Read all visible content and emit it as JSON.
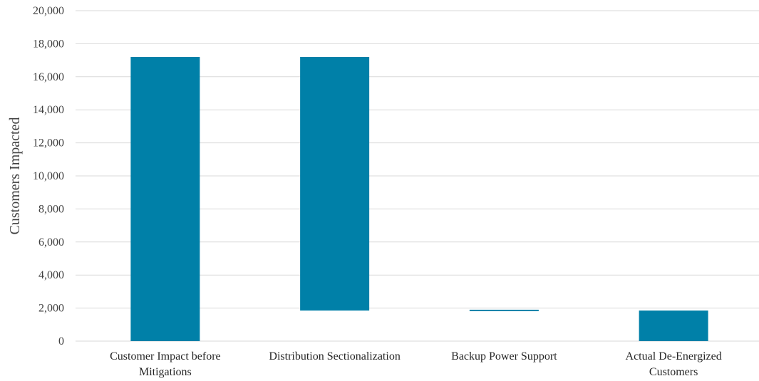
{
  "chart_data": {
    "type": "bar",
    "subtype": "waterfall",
    "title": "",
    "xlabel": "",
    "ylabel": "Customers Impacted",
    "ylim": [
      0,
      20000
    ],
    "y_ticks": [
      "0",
      "2,000",
      "4,000",
      "6,000",
      "8,000",
      "10,000",
      "12,000",
      "14,000",
      "16,000",
      "18,000",
      "20,000"
    ],
    "grid": true,
    "legend": "none",
    "bar_color": "#0080A8",
    "categories": [
      [
        "Customer Impact before",
        "Mitigations"
      ],
      [
        "Distribution Sectionalization"
      ],
      [
        "Backup Power Support"
      ],
      [
        "Actual De-Energized",
        "Customers"
      ]
    ],
    "bars": [
      {
        "base": 0,
        "top": 17200
      },
      {
        "base": 1850,
        "top": 17200
      },
      {
        "base": 1850,
        "top": 1900
      },
      {
        "base": 0,
        "top": 1850
      }
    ]
  }
}
